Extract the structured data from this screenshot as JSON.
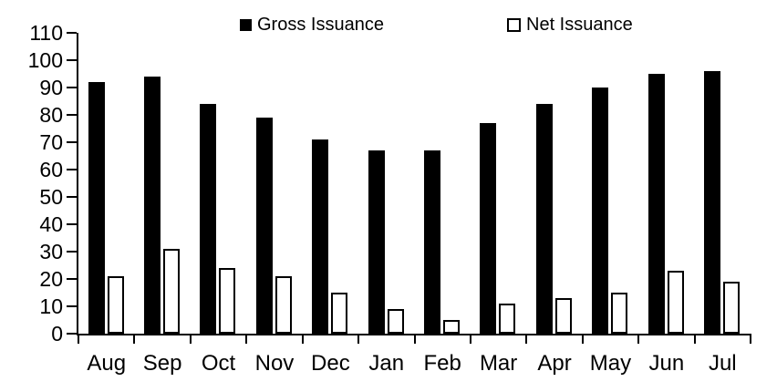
{
  "chart_data": {
    "type": "bar",
    "title": "",
    "xlabel": "",
    "ylabel": "",
    "categories": [
      "Aug",
      "Sep",
      "Oct",
      "Nov",
      "Dec",
      "Jan",
      "Feb",
      "Mar",
      "Apr",
      "May",
      "Jun",
      "Jul"
    ],
    "series": [
      {
        "name": "Gross Issuance",
        "fill": "#000000",
        "stroke": "#000000",
        "values": [
          92,
          94,
          84,
          79,
          71,
          67,
          67,
          77,
          84,
          90,
          95,
          96
        ]
      },
      {
        "name": "Net Issuance",
        "fill": "#ffffff",
        "stroke": "#000000",
        "values": [
          21,
          31,
          24,
          21,
          15,
          9,
          5,
          11,
          13,
          15,
          23,
          19
        ]
      }
    ],
    "ylim": [
      0,
      110
    ],
    "yticks": [
      0,
      10,
      20,
      30,
      40,
      50,
      60,
      70,
      80,
      90,
      100,
      110
    ],
    "grid": false,
    "legend_position": "top",
    "axis_color": "#000000",
    "background_color": "#ffffff"
  }
}
